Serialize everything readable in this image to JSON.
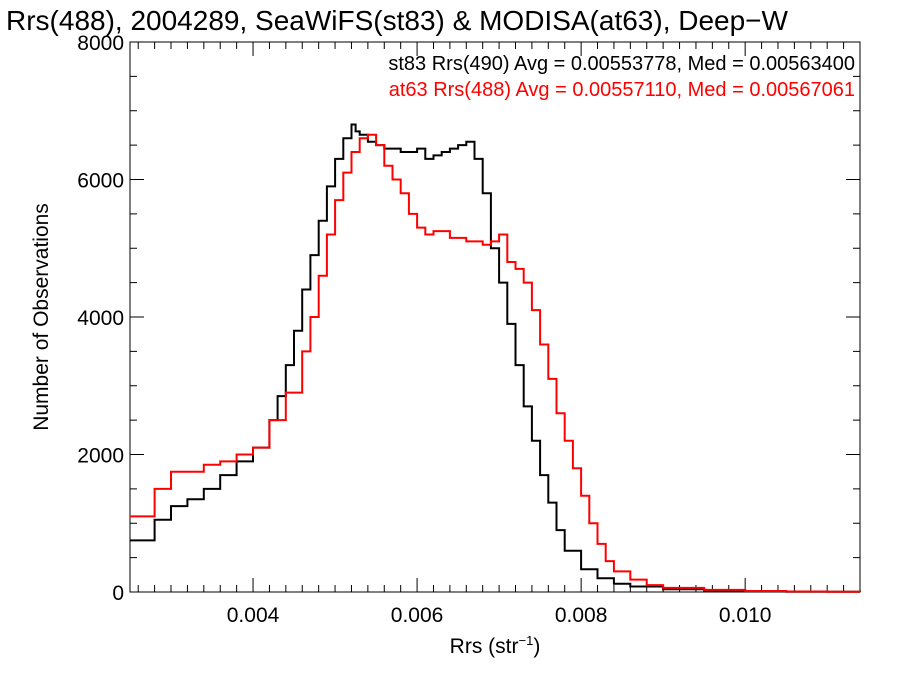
{
  "chart_data": {
    "type": "line",
    "title": "Rrs(488), 2004289, SeaWiFS(st83) & MODISA(at63), Deep−W",
    "xlabel_main": "Rrs (str",
    "xlabel_sup": "−1",
    "xlabel_close": ")",
    "ylabel": "Number of Observations",
    "xlim": [
      0.0025,
      0.0114
    ],
    "ylim": [
      0,
      8000
    ],
    "x_ticks": [
      0.004,
      0.006,
      0.008,
      0.01
    ],
    "x_tick_labels": [
      "0.004",
      "0.006",
      "0.008",
      "0.010"
    ],
    "y_ticks": [
      0,
      2000,
      4000,
      6000,
      8000
    ],
    "y_tick_labels": [
      "0",
      "2000",
      "4000",
      "6000",
      "8000"
    ],
    "grid": false,
    "legend_position": "top-right",
    "series": [
      {
        "name": "st83 Rrs(490) Avg = 0.00553778, Med = 0.00563400",
        "color": "#000000",
        "x": [
          0.0025,
          0.0028,
          0.003,
          0.0032,
          0.0034,
          0.0036,
          0.0038,
          0.004,
          0.0042,
          0.0043,
          0.0044,
          0.0045,
          0.0046,
          0.0047,
          0.0048,
          0.0049,
          0.005,
          0.0051,
          0.0052,
          0.00525,
          0.0053,
          0.0054,
          0.0055,
          0.0056,
          0.0058,
          0.006,
          0.0061,
          0.0062,
          0.0063,
          0.0064,
          0.0065,
          0.0066,
          0.0067,
          0.0068,
          0.0069,
          0.007,
          0.0071,
          0.0072,
          0.0073,
          0.0074,
          0.0075,
          0.0076,
          0.0077,
          0.0078,
          0.008,
          0.0082,
          0.0084,
          0.0086,
          0.009,
          0.0095,
          0.01,
          0.0105,
          0.011,
          0.0114
        ],
        "y": [
          750,
          1050,
          1250,
          1350,
          1500,
          1700,
          1900,
          2100,
          2500,
          2850,
          3300,
          3800,
          4400,
          4900,
          5400,
          5900,
          6300,
          6600,
          6800,
          6700,
          6650,
          6550,
          6500,
          6450,
          6400,
          6450,
          6300,
          6350,
          6400,
          6450,
          6500,
          6550,
          6300,
          5800,
          5000,
          4500,
          3900,
          3300,
          2700,
          2200,
          1700,
          1300,
          900,
          600,
          330,
          200,
          120,
          80,
          40,
          20,
          10,
          5,
          3,
          2
        ]
      },
      {
        "name": "at63 Rrs(488) Avg = 0.00557110, Med = 0.00567061",
        "color": "#ff0000",
        "x": [
          0.0025,
          0.0028,
          0.003,
          0.0032,
          0.0034,
          0.0036,
          0.0038,
          0.004,
          0.0042,
          0.0044,
          0.0046,
          0.0047,
          0.0048,
          0.0049,
          0.005,
          0.0051,
          0.0052,
          0.0053,
          0.0054,
          0.0055,
          0.0056,
          0.0057,
          0.0058,
          0.0059,
          0.006,
          0.0061,
          0.0062,
          0.0064,
          0.0066,
          0.0068,
          0.0069,
          0.007,
          0.0071,
          0.0072,
          0.0073,
          0.0074,
          0.0075,
          0.0076,
          0.0077,
          0.0078,
          0.0079,
          0.008,
          0.0081,
          0.0082,
          0.0083,
          0.0084,
          0.0086,
          0.0088,
          0.009,
          0.0095,
          0.01,
          0.0105,
          0.011,
          0.0114
        ],
        "y": [
          1100,
          1500,
          1750,
          1750,
          1850,
          1900,
          2000,
          2100,
          2500,
          2900,
          3500,
          4000,
          4600,
          5200,
          5700,
          6100,
          6400,
          6600,
          6650,
          6500,
          6200,
          6000,
          5800,
          5500,
          5300,
          5200,
          5250,
          5150,
          5100,
          5050,
          5100,
          5200,
          4800,
          4700,
          4500,
          4100,
          3600,
          3100,
          2600,
          2200,
          1800,
          1400,
          1000,
          700,
          450,
          300,
          180,
          100,
          60,
          30,
          15,
          8,
          4,
          2
        ]
      }
    ]
  }
}
